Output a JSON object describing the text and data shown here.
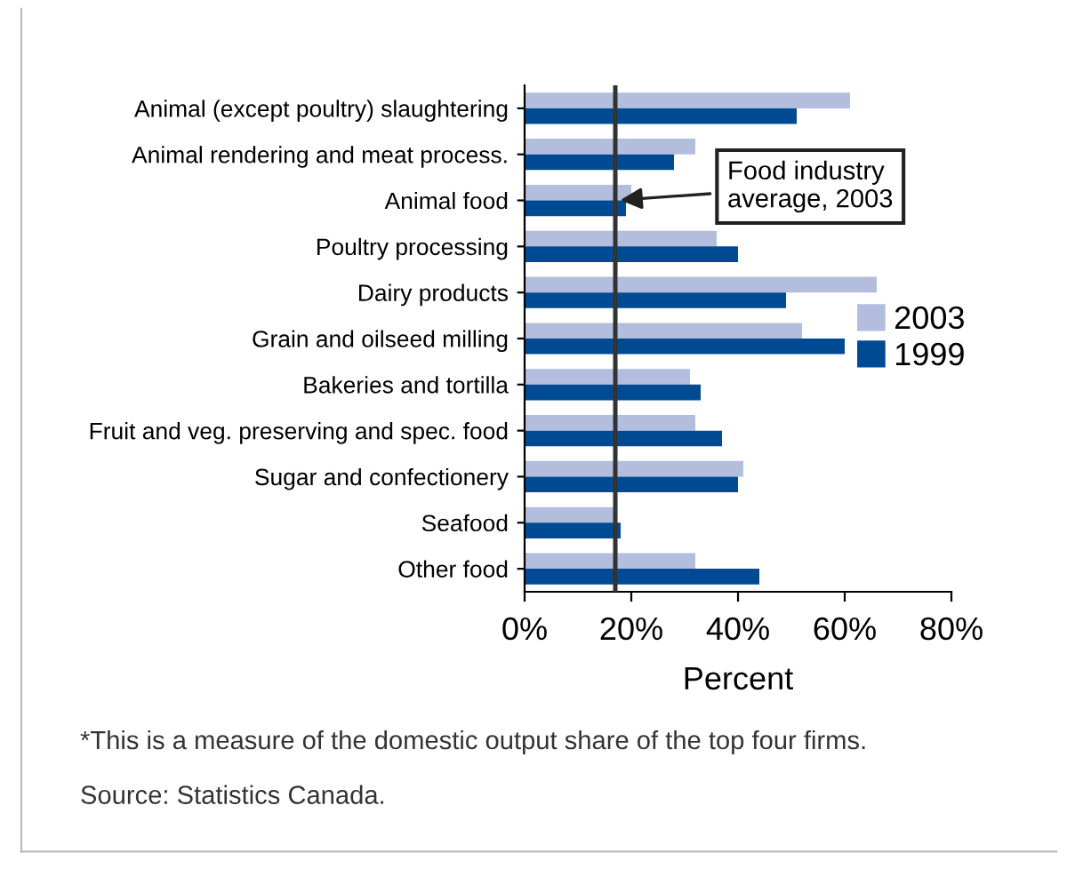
{
  "chart_data": {
    "type": "bar",
    "orientation": "horizontal",
    "xlabel": "Percent",
    "categories": [
      "Animal (except poultry) slaughtering",
      "Animal rendering and meat process.",
      "Animal food",
      "Poultry processing",
      "Dairy products",
      "Grain and oilseed milling",
      "Bakeries and tortilla",
      "Fruit and veg. preserving and spec. food",
      "Sugar and confectionery",
      "Seafood",
      "Other food"
    ],
    "series": [
      {
        "name": "2003",
        "color": "#b3bedf",
        "values": [
          61,
          32,
          20,
          36,
          66,
          52,
          31,
          32,
          41,
          17,
          32
        ]
      },
      {
        "name": "1999",
        "color": "#004a93",
        "values": [
          51,
          28,
          19,
          40,
          49,
          60,
          33,
          37,
          40,
          18,
          44
        ]
      }
    ],
    "xlim": [
      0,
      80
    ],
    "xticks": [
      {
        "value": 0,
        "label": "0%"
      },
      {
        "value": 20,
        "label": "20%"
      },
      {
        "value": 40,
        "label": "40%"
      },
      {
        "value": 60,
        "label": "60%"
      },
      {
        "value": 80,
        "label": "80%"
      }
    ],
    "ref_lines": [
      {
        "axis": "x",
        "value": 17,
        "label": "Food industry\naverage, 2003",
        "color": "#333333"
      }
    ],
    "legend": "right",
    "grid": false,
    "annotations": [
      "*This is a measure of the domestic output share of the top four firms.",
      "Source: Statistics Canada."
    ]
  }
}
